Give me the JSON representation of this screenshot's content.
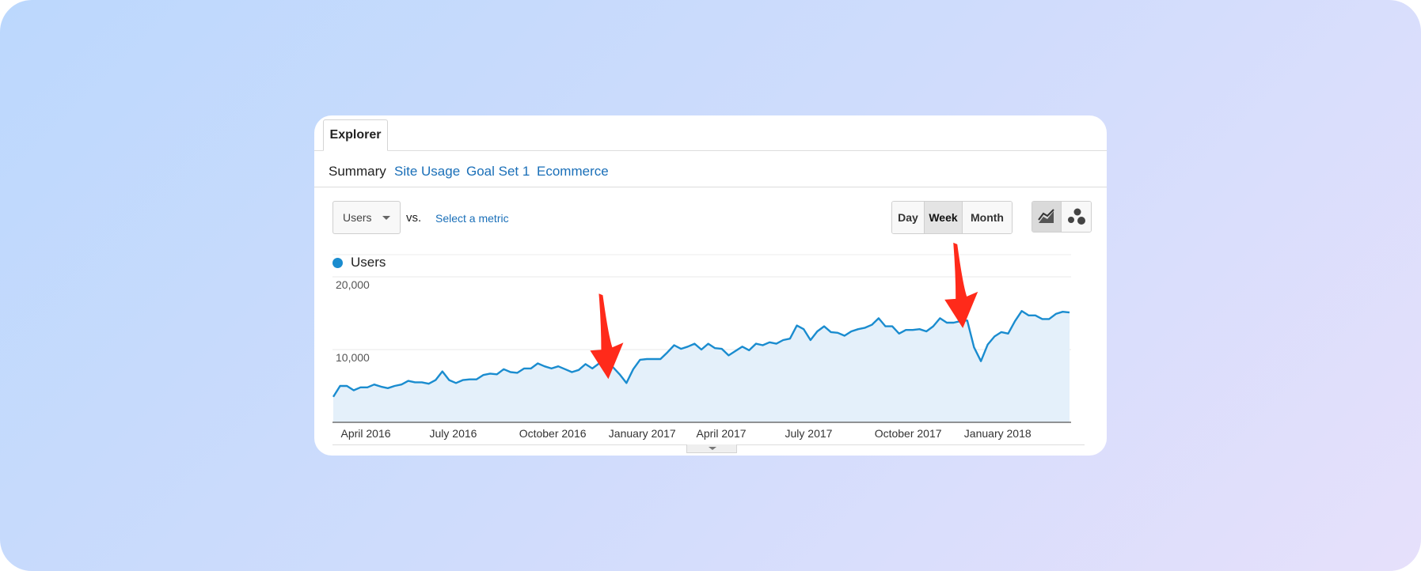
{
  "tabs": {
    "active": "Explorer"
  },
  "subtabs": [
    "Summary",
    "Site Usage",
    "Goal Set 1",
    "Ecommerce"
  ],
  "controls": {
    "metric": "Users",
    "vs_label": "vs.",
    "select_metric": "Select a metric",
    "periods": [
      "Day",
      "Week",
      "Month"
    ],
    "active_period": "Week"
  },
  "legend": {
    "label": "Users",
    "color": "#1a8ccf"
  },
  "annotations": {
    "arrow_color": "#ff2a1a",
    "arrows": [
      {
        "x": "2016-12-26",
        "y": 5300
      },
      {
        "x": "2017-12-25",
        "y": 12300
      }
    ]
  },
  "chart_data": {
    "type": "area",
    "series": [
      {
        "name": "Users",
        "color": "#1a8ccf",
        "x_start": "2016-03-21",
        "interval": "week",
        "values": [
          3500,
          5000,
          5000,
          4400,
          4800,
          4800,
          5200,
          4900,
          4700,
          5000,
          5200,
          5700,
          5500,
          5500,
          5300,
          5800,
          7000,
          5800,
          5400,
          5800,
          5900,
          5900,
          6500,
          6700,
          6600,
          7300,
          6900,
          6800,
          7400,
          7400,
          8100,
          7700,
          7400,
          7700,
          7300,
          6900,
          7200,
          8000,
          7400,
          8100,
          8000,
          7600,
          6600,
          5400,
          7300,
          8600,
          8700,
          8700,
          8700,
          9600,
          10600,
          10100,
          10400,
          10800,
          10000,
          10800,
          10200,
          10100,
          9200,
          9800,
          10400,
          9900,
          10800,
          10600,
          11000,
          10800,
          11300,
          11500,
          13300,
          12800,
          11300,
          12500,
          13200,
          12400,
          12300,
          11900,
          12500,
          12800,
          13000,
          13400,
          14300,
          13200,
          13200,
          12200,
          12700,
          12700,
          12800,
          12500,
          13200,
          14300,
          13700,
          13700,
          13900,
          14000,
          10300,
          8400,
          10700,
          11800,
          12400,
          12200,
          13900,
          15300,
          14700,
          14700,
          14200,
          14200,
          14900,
          15200,
          15100
        ]
      }
    ],
    "x_tick_labels": [
      "April 2016",
      "July 2016",
      "October 2016",
      "January 2017",
      "April 2017",
      "July 2017",
      "October 2017",
      "January 2018"
    ],
    "y_tick_labels": [
      "20,000",
      "10,000"
    ],
    "ylim": [
      0,
      20000
    ],
    "grid": true,
    "legend_position": "top-left"
  }
}
